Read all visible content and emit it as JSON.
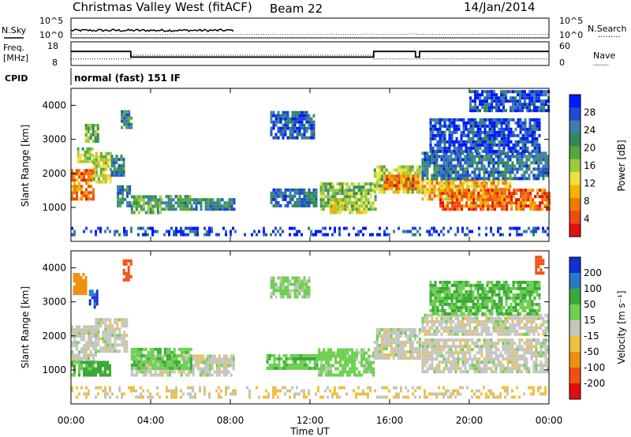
{
  "header": {
    "station": "Christmas Valley West (fitACF)",
    "beam": "Beam 22",
    "date": "14/Jan/2014"
  },
  "labels": {
    "nsky": "N.Sky",
    "nsearch": "N.Search",
    "freq": "Freq.",
    "mhz": "[MHz]",
    "nave": "Nave",
    "cpid": "CPID",
    "cpid_value": "normal (fast) 151 IF",
    "dotted": ".........",
    "ten_pow_5": "10^5",
    "ten_pow_0": "10^0"
  },
  "chart_data": [
    {
      "type": "line",
      "name": "noise",
      "y_ticks_left": [
        "10^5",
        "10^0"
      ],
      "y_ticks_right": [
        "10^5",
        "10^0"
      ],
      "series": [
        {
          "name": "N.Sky",
          "style": "solid"
        },
        {
          "name": "N.Search",
          "style": "dotted"
        }
      ]
    },
    {
      "type": "line",
      "name": "freq-nave",
      "y_ticks_left": [
        "18",
        "8"
      ],
      "y_ticks_right": [
        "60",
        "0"
      ],
      "ylim_left": [
        8,
        18
      ],
      "ylim_right": [
        0,
        60
      ],
      "series": [
        {
          "name": "Freq. [MHz]",
          "style": "solid",
          "points": [
            [
              0,
              15
            ],
            [
              3,
              15
            ],
            [
              3,
              12
            ],
            [
              15.2,
              12
            ],
            [
              15.2,
              15
            ],
            [
              17.3,
              15
            ],
            [
              17.3,
              12
            ],
            [
              17.5,
              12
            ],
            [
              17.5,
              15
            ],
            [
              24,
              15
            ]
          ]
        },
        {
          "name": "Nave",
          "style": "dotted",
          "points": [
            [
              0,
              11
            ],
            [
              3,
              11
            ],
            [
              3,
              13
            ],
            [
              15.2,
              13
            ],
            [
              15.2,
              11
            ],
            [
              24,
              11
            ]
          ]
        }
      ]
    },
    {
      "type": "heatmap",
      "name": "power",
      "ylabel": "Slant Range [km]",
      "yticks": [
        "1000",
        "2000",
        "3000",
        "4000"
      ],
      "ylim": [
        0,
        4500
      ],
      "colorbar_label": "Power [dB]",
      "colorbar_ticks": [
        "4",
        "8",
        "12",
        "16",
        "20",
        "24",
        "28"
      ],
      "colors": [
        "#0018ff",
        "#1e4bd2",
        "#3d7ea8",
        "#2e8a5a",
        "#56a83c",
        "#9ccc3c",
        "#f0e040",
        "#f5b400",
        "#f07a00",
        "#f04a10",
        "#e01010"
      ],
      "blobs": [
        {
          "t0": 0.0,
          "t1": 1.1,
          "r0": 1200,
          "r1": 2100,
          "level": 0.85
        },
        {
          "t0": 0.3,
          "t1": 1.1,
          "r0": 2300,
          "r1": 2700,
          "level": 0.55
        },
        {
          "t0": 0.7,
          "t1": 1.3,
          "r0": 2900,
          "r1": 3400,
          "level": 0.5
        },
        {
          "t0": 1.1,
          "t1": 2.0,
          "r0": 1700,
          "r1": 2600,
          "level": 0.6
        },
        {
          "t0": 2.0,
          "t1": 2.6,
          "r0": 1900,
          "r1": 2500,
          "level": 0.3
        },
        {
          "t0": 2.5,
          "t1": 3.0,
          "r0": 3300,
          "r1": 3800,
          "level": 0.3
        },
        {
          "t0": 2.3,
          "t1": 3.0,
          "r0": 1000,
          "r1": 1600,
          "level": 0.3
        },
        {
          "t0": 3.0,
          "t1": 4.5,
          "r0": 800,
          "r1": 1300,
          "level": 0.45
        },
        {
          "t0": 4.5,
          "t1": 6.0,
          "r0": 900,
          "r1": 1300,
          "level": 0.35
        },
        {
          "t0": 6.0,
          "t1": 8.2,
          "r0": 900,
          "r1": 1200,
          "level": 0.3
        },
        {
          "t0": 10.0,
          "t1": 12.2,
          "r0": 3000,
          "r1": 3800,
          "level": 0.2
        },
        {
          "t0": 10.0,
          "t1": 12.3,
          "r0": 1000,
          "r1": 1500,
          "level": 0.25
        },
        {
          "t0": 12.5,
          "t1": 15.3,
          "r0": 900,
          "r1": 1700,
          "level": 0.45
        },
        {
          "t0": 13.0,
          "t1": 14.8,
          "r0": 800,
          "r1": 1200,
          "level": 0.6
        },
        {
          "t0": 15.2,
          "t1": 17.5,
          "r0": 1400,
          "r1": 2200,
          "level": 0.55
        },
        {
          "t0": 15.7,
          "t1": 17.4,
          "r0": 1500,
          "r1": 1900,
          "level": 0.85
        },
        {
          "t0": 17.6,
          "t1": 22.0,
          "r0": 1200,
          "r1": 1800,
          "level": 0.75
        },
        {
          "t0": 18.5,
          "t1": 24.0,
          "r0": 900,
          "r1": 1500,
          "level": 0.9
        },
        {
          "t0": 17.6,
          "t1": 24.0,
          "r0": 1800,
          "r1": 2600,
          "level": 0.25
        },
        {
          "t0": 18.0,
          "t1": 23.5,
          "r0": 2600,
          "r1": 3600,
          "level": 0.15
        },
        {
          "t0": 20.0,
          "t1": 24.0,
          "r0": 3800,
          "r1": 4400,
          "level": 0.15
        },
        {
          "t0": 0.0,
          "t1": 24.0,
          "r0": 150,
          "r1": 400,
          "level": 0.15
        }
      ]
    },
    {
      "type": "heatmap",
      "name": "velocity",
      "xlabel": "Time UT",
      "ylabel": "Slant Range [km]",
      "yticks": [
        "1000",
        "2000",
        "3000",
        "4000"
      ],
      "ylim": [
        0,
        4500
      ],
      "colorbar_label": "Velocity [m s⁻¹]",
      "colorbar_ticks": [
        "200",
        "100",
        "50",
        "15",
        "-15",
        "-50",
        "-100",
        "-200"
      ],
      "colors": [
        "#1030d0",
        "#2a78c8",
        "#3ca838",
        "#6cd050",
        "#c4c4c0",
        "#f0c040",
        "#f09010",
        "#f05010",
        "#e01010"
      ],
      "xticks": [
        "00:00",
        "04:00",
        "08:00",
        "12:00",
        "16:00",
        "20:00",
        "00:00"
      ],
      "blobs": [
        {
          "t0": 0.0,
          "t1": 1.2,
          "r0": 1200,
          "r1": 2300,
          "v": 0
        },
        {
          "t0": 1.2,
          "t1": 2.8,
          "r0": 1500,
          "r1": 2500,
          "v": 0
        },
        {
          "t0": 0.9,
          "t1": 1.3,
          "r0": 2800,
          "r1": 3300,
          "v": 200
        },
        {
          "t0": 2.6,
          "t1": 3.0,
          "r0": 3600,
          "r1": 4200,
          "v": -180
        },
        {
          "t0": 0.1,
          "t1": 0.7,
          "r0": 3200,
          "r1": 3800,
          "v": -70
        },
        {
          "t0": 0.0,
          "t1": 2.0,
          "r0": 800,
          "r1": 1200,
          "v": 60
        },
        {
          "t0": 3.0,
          "t1": 8.2,
          "r0": 800,
          "r1": 1400,
          "v": 0
        },
        {
          "t0": 3.0,
          "t1": 6.0,
          "r0": 1000,
          "r1": 1600,
          "v": 40
        },
        {
          "t0": 9.8,
          "t1": 12.3,
          "r0": 1000,
          "r1": 1400,
          "v": 40
        },
        {
          "t0": 12.4,
          "t1": 15.2,
          "r0": 800,
          "r1": 1600,
          "v": 30
        },
        {
          "t0": 15.2,
          "t1": 17.5,
          "r0": 1300,
          "r1": 2200,
          "v": 0
        },
        {
          "t0": 17.6,
          "t1": 24.0,
          "r0": 900,
          "r1": 1900,
          "v": 0
        },
        {
          "t0": 17.6,
          "t1": 24.0,
          "r0": 2000,
          "r1": 2600,
          "v": 0
        },
        {
          "t0": 18.0,
          "t1": 23.5,
          "r0": 2600,
          "r1": 3600,
          "v": 50
        },
        {
          "t0": 10.0,
          "t1": 12.0,
          "r0": 3100,
          "r1": 3700,
          "v": 20
        },
        {
          "t0": 23.3,
          "t1": 23.7,
          "r0": 3800,
          "r1": 4300,
          "v": -150
        },
        {
          "t0": 0.0,
          "t1": 24.0,
          "r0": 150,
          "r1": 450,
          "v": -20
        }
      ]
    }
  ]
}
